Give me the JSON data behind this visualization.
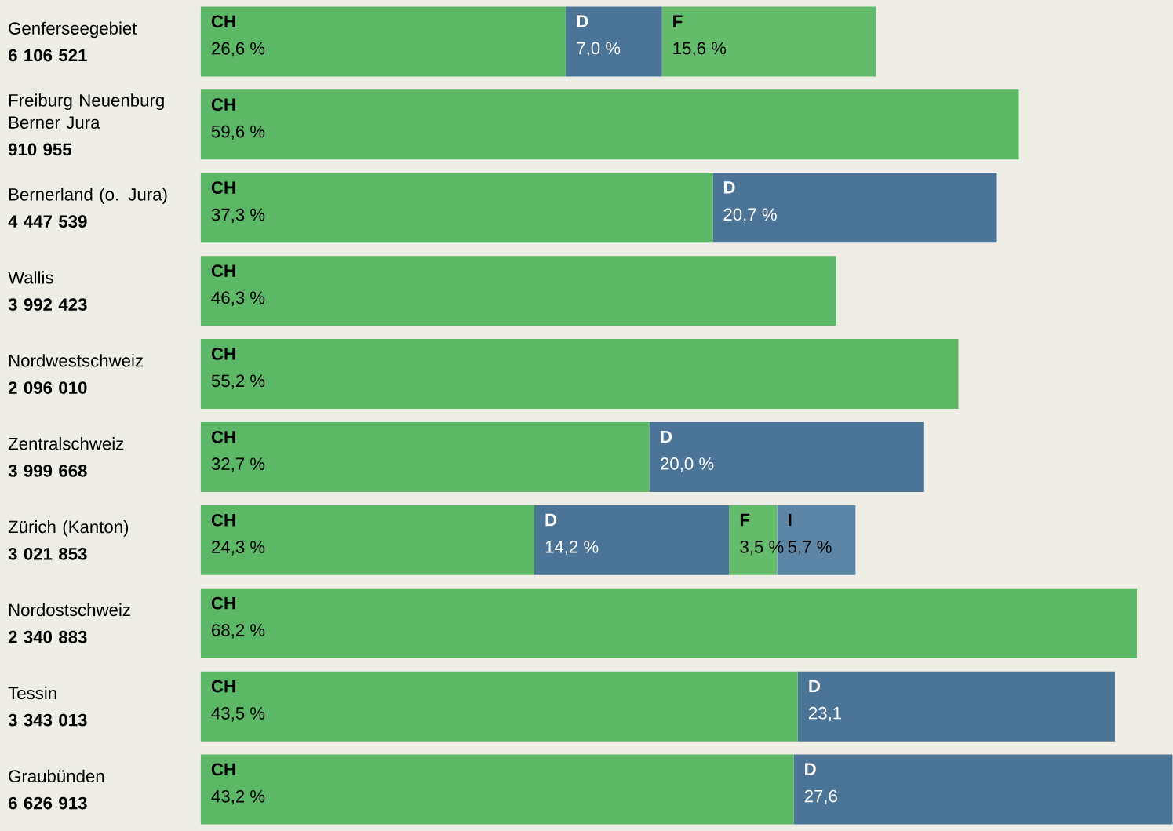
{
  "chart_data": {
    "type": "bar",
    "orientation": "horizontal",
    "stacked": true,
    "categories": [
      "Genferseegebiet",
      "Freiburg Neuenburg Berner Jura",
      "Bernerland (o. Jura)",
      "Wallis",
      "Nordwestschweiz",
      "Zentralschweiz",
      "Zürich (Kanton)",
      "Nordostschweiz",
      "Tessin",
      "Graubünden"
    ],
    "annotations": [
      "6 106 521",
      "910 955",
      "4 447 539",
      "3 992 423",
      "2 096 010",
      "3 999 668",
      "3 021 853",
      "2 340 883",
      "3 343 013",
      "6 626 913"
    ],
    "series": [
      {
        "name": "CH",
        "color": "#5cb767",
        "values": [
          26.6,
          59.6,
          37.3,
          46.3,
          55.2,
          32.7,
          24.3,
          68.2,
          43.5,
          43.2
        ],
        "value_labels": [
          "26,6 %",
          "59,6 %",
          "37,3 %",
          "46,3 %",
          "55,2 %",
          "32,7 %",
          "24,3 %",
          "68,2 %",
          "43,5 %",
          "43,2 %"
        ]
      },
      {
        "name": "D",
        "color": "#4c7496",
        "values": [
          7.0,
          null,
          20.7,
          null,
          null,
          20.0,
          14.2,
          null,
          23.1,
          27.6
        ],
        "value_labels": [
          "7,0 %",
          null,
          "20,7 %",
          null,
          null,
          "20,0 %",
          "14,2 %",
          null,
          "23,1",
          "27,6"
        ]
      },
      {
        "name": "F",
        "color": "#65bb6c",
        "values": [
          15.6,
          null,
          null,
          null,
          null,
          null,
          3.5,
          null,
          null,
          null
        ],
        "value_labels": [
          "15,6 %",
          null,
          null,
          null,
          null,
          null,
          "3,5 %",
          null,
          null,
          null
        ]
      },
      {
        "name": "I",
        "color": "#5d86a6",
        "values": [
          null,
          null,
          null,
          null,
          null,
          null,
          5.7,
          null,
          null,
          null
        ],
        "value_labels": [
          null,
          null,
          null,
          null,
          null,
          null,
          "5,7 %",
          null,
          null,
          null
        ]
      }
    ],
    "legend": false
  }
}
